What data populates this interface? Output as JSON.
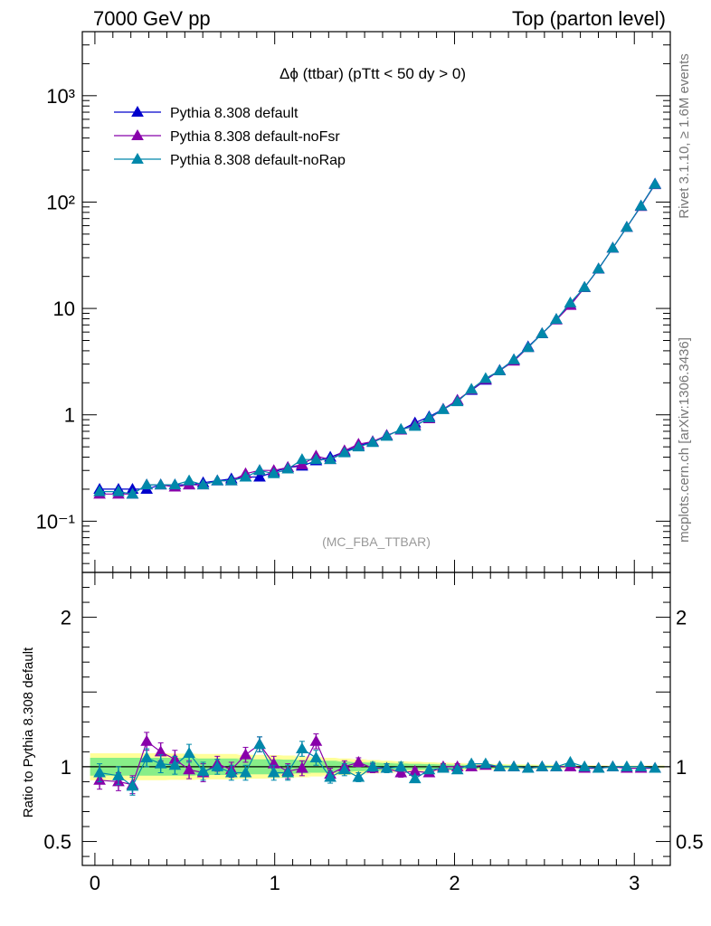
{
  "header": {
    "left": "7000 GeV pp",
    "right": "Top (parton level)"
  },
  "side_labels": {
    "rivet": "Rivet 3.1.10, ≥ 1.6M events",
    "mcplots": "mcplots.cern.ch [arXiv:1306.3436]"
  },
  "chart_data": {
    "type": "line",
    "title": "Δϕ (ttbar) (pTtt < 50 dy > 0)",
    "watermark": "(MC_FBA_TTBAR)",
    "x": [
      0.026,
      0.131,
      0.209,
      0.288,
      0.366,
      0.445,
      0.524,
      0.602,
      0.681,
      0.759,
      0.838,
      0.916,
      0.995,
      1.073,
      1.152,
      1.23,
      1.309,
      1.388,
      1.466,
      1.545,
      1.623,
      1.702,
      1.78,
      1.859,
      1.937,
      2.016,
      2.094,
      2.173,
      2.251,
      2.33,
      2.409,
      2.487,
      2.566,
      2.644,
      2.723,
      2.801,
      2.88,
      2.958,
      3.037,
      3.115
    ],
    "xlim": [
      -0.07,
      3.2
    ],
    "xticks": [
      {
        "v": 0,
        "label": "0"
      },
      {
        "v": 1,
        "label": "1"
      },
      {
        "v": 2,
        "label": "2"
      },
      {
        "v": 3,
        "label": "3"
      }
    ],
    "main": {
      "yscale": "log",
      "ylim": [
        0.033,
        4000
      ],
      "yticks": [
        {
          "v": 0.1,
          "label": "10⁻¹"
        },
        {
          "v": 1,
          "label": "1"
        },
        {
          "v": 10,
          "label": "10"
        },
        {
          "v": 100,
          "label": "10²"
        },
        {
          "v": 1000,
          "label": "10³"
        }
      ],
      "series": [
        {
          "name": "Pythia 8.308 default",
          "color": "#0000cc",
          "values": [
            0.2,
            0.2,
            0.2,
            0.2,
            0.22,
            0.22,
            0.22,
            0.23,
            0.24,
            0.25,
            0.26,
            0.26,
            0.29,
            0.32,
            0.33,
            0.37,
            0.4,
            0.45,
            0.51,
            0.56,
            0.64,
            0.72,
            0.84,
            0.96,
            1.13,
            1.37,
            1.7,
            2.12,
            2.62,
            3.3,
            4.37,
            5.8,
            7.9,
            10.8,
            15.8,
            23.5,
            37.0,
            58.0,
            92.0,
            148.0
          ]
        },
        {
          "name": "Pythia 8.308 default-noFsr",
          "color": "#8800aa",
          "values": [
            0.18,
            0.18,
            0.18,
            0.22,
            0.22,
            0.21,
            0.22,
            0.22,
            0.24,
            0.24,
            0.28,
            0.3,
            0.3,
            0.32,
            0.34,
            0.41,
            0.38,
            0.46,
            0.53,
            0.56,
            0.64,
            0.72,
            0.8,
            0.92,
            1.13,
            1.37,
            1.72,
            2.15,
            2.6,
            3.2,
            4.3,
            5.8,
            7.8,
            10.7,
            15.7,
            23.6,
            37.0,
            58.0,
            91.0,
            146.0
          ]
        },
        {
          "name": "Pythia 8.308 default-noRap",
          "color": "#0088aa",
          "values": [
            0.19,
            0.19,
            0.18,
            0.22,
            0.22,
            0.22,
            0.24,
            0.22,
            0.24,
            0.24,
            0.26,
            0.3,
            0.28,
            0.31,
            0.38,
            0.38,
            0.38,
            0.44,
            0.5,
            0.55,
            0.63,
            0.73,
            0.78,
            0.94,
            1.12,
            1.33,
            1.74,
            2.2,
            2.6,
            3.3,
            4.3,
            5.8,
            7.9,
            11.3,
            15.8,
            23.6,
            37.0,
            58.0,
            92.0,
            147.0
          ]
        }
      ]
    },
    "ratio": {
      "ylabel": "Ratio to Pythia 8.308 default",
      "ylim": [
        0.34,
        2.3
      ],
      "yticks": [
        {
          "v": 0.5,
          "label": "0.5"
        },
        {
          "v": 1,
          "label": "1"
        },
        {
          "v": 2,
          "label": "2"
        }
      ],
      "band_stat": [
        0.06,
        0.06,
        0.06,
        0.06,
        0.06,
        0.06,
        0.06,
        0.055,
        0.055,
        0.055,
        0.05,
        0.05,
        0.05,
        0.048,
        0.045,
        0.04,
        0.04,
        0.035,
        0.03,
        0.028,
        0.025,
        0.022,
        0.02,
        0.018,
        0.016,
        0.014,
        0.012,
        0.011,
        0.01,
        0.009,
        0.008,
        0.007,
        0.006,
        0.006,
        0.005,
        0.005,
        0.004,
        0.004,
        0.004,
        0.004
      ],
      "band_total": [
        0.09,
        0.09,
        0.09,
        0.09,
        0.09,
        0.088,
        0.088,
        0.085,
        0.085,
        0.085,
        0.08,
        0.08,
        0.078,
        0.075,
        0.07,
        0.065,
        0.06,
        0.055,
        0.05,
        0.045,
        0.04,
        0.036,
        0.033,
        0.03,
        0.027,
        0.025,
        0.022,
        0.02,
        0.018,
        0.016,
        0.015,
        0.013,
        0.012,
        0.011,
        0.01,
        0.009,
        0.008,
        0.008,
        0.008,
        0.008
      ],
      "series": [
        {
          "name": "Pythia 8.308 default-noFsr",
          "color": "#8800aa",
          "values": [
            0.91,
            0.9,
            0.88,
            1.17,
            1.1,
            1.05,
            0.98,
            0.96,
            1.02,
            0.98,
            1.08,
            1.15,
            1.02,
            0.97,
            0.99,
            1.17,
            0.95,
            1.0,
            1.03,
            0.99,
            0.99,
            0.96,
            0.97,
            0.96,
            1.0,
            1.0,
            1.0,
            1.01,
            1.0,
            1.0,
            0.99,
            1.0,
            1.0,
            1.0,
            0.99,
            0.99,
            1.0,
            0.99,
            0.99,
            0.99
          ],
          "err": [
            0.06,
            0.06,
            0.06,
            0.06,
            0.06,
            0.06,
            0.06,
            0.06,
            0.05,
            0.05,
            0.05,
            0.05,
            0.05,
            0.05,
            0.05,
            0.05,
            0.04,
            0.04,
            0.03,
            0.03,
            0.03,
            0.03,
            0.02,
            0.02,
            0.02,
            0.02,
            0.015,
            0.015,
            0.01,
            0.01,
            0.01,
            0.01,
            0.01,
            0.01,
            0.01,
            0.01,
            0.005,
            0.005,
            0.005,
            0.005
          ]
        },
        {
          "name": "Pythia 8.308 default-noRap",
          "color": "#0088aa",
          "values": [
            0.96,
            0.94,
            0.87,
            1.06,
            1.02,
            1.01,
            1.09,
            0.97,
            1.0,
            0.96,
            0.96,
            1.15,
            0.96,
            0.96,
            1.12,
            1.06,
            0.93,
            0.98,
            0.93,
            1.0,
            0.99,
            1.0,
            0.92,
            0.98,
            0.99,
            0.98,
            1.02,
            1.02,
            1.0,
            1.0,
            0.99,
            1.0,
            1.0,
            1.03,
            1.0,
            0.99,
            1.0,
            1.0,
            1.0,
            0.99
          ],
          "err": [
            0.06,
            0.06,
            0.06,
            0.06,
            0.06,
            0.06,
            0.06,
            0.06,
            0.05,
            0.05,
            0.05,
            0.05,
            0.05,
            0.05,
            0.05,
            0.05,
            0.04,
            0.04,
            0.03,
            0.03,
            0.03,
            0.03,
            0.02,
            0.02,
            0.02,
            0.02,
            0.015,
            0.015,
            0.01,
            0.01,
            0.01,
            0.01,
            0.01,
            0.01,
            0.01,
            0.01,
            0.005,
            0.005,
            0.005,
            0.005
          ]
        }
      ]
    }
  }
}
